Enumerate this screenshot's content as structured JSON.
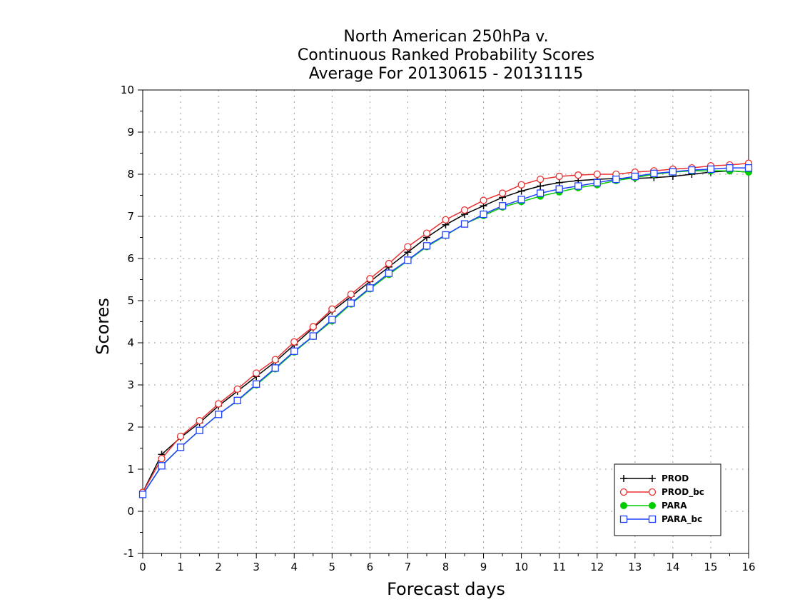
{
  "chart_data": {
    "type": "line",
    "title": [
      "North American 250hPa v.",
      "Continuous Ranked Probability Scores",
      "Average For 20130615 - 20131115"
    ],
    "xlabel": "Forecast days",
    "ylabel": "Scores",
    "xlim": [
      0,
      16
    ],
    "ylim": [
      -1,
      10
    ],
    "xticks": [
      "0",
      "1",
      "2",
      "3",
      "4",
      "5",
      "6",
      "7",
      "8",
      "9",
      "10",
      "11",
      "12",
      "13",
      "14",
      "15",
      "16"
    ],
    "yticks": [
      "-1",
      "0",
      "1",
      "2",
      "3",
      "4",
      "5",
      "6",
      "7",
      "8",
      "9",
      "10"
    ],
    "grid": true,
    "legend_position": "bottom-right",
    "x": [
      0,
      0.5,
      1,
      1.5,
      2,
      2.5,
      3,
      3.5,
      4,
      4.5,
      5,
      5.5,
      6,
      6.5,
      7,
      7.5,
      8,
      8.5,
      9,
      9.5,
      10,
      10.5,
      11,
      11.5,
      12,
      12.5,
      13,
      13.5,
      14,
      14.5,
      15,
      15.5,
      16
    ],
    "series": [
      {
        "name": "PROD",
        "color": "#000000",
        "marker": "plus",
        "values": [
          0.45,
          1.35,
          1.75,
          2.1,
          2.5,
          2.85,
          3.2,
          3.55,
          3.95,
          4.35,
          4.75,
          5.1,
          5.45,
          5.8,
          6.15,
          6.5,
          6.8,
          7.05,
          7.25,
          7.45,
          7.6,
          7.72,
          7.8,
          7.85,
          7.88,
          7.9,
          7.9,
          7.92,
          7.95,
          8.0,
          8.05,
          8.08,
          8.05
        ]
      },
      {
        "name": "PROD_bc",
        "color": "#e83030",
        "marker": "circle",
        "values": [
          0.45,
          1.25,
          1.78,
          2.15,
          2.55,
          2.9,
          3.28,
          3.6,
          4.02,
          4.38,
          4.8,
          5.15,
          5.52,
          5.88,
          6.28,
          6.6,
          6.92,
          7.15,
          7.38,
          7.55,
          7.75,
          7.88,
          7.95,
          7.98,
          8.0,
          8.0,
          8.05,
          8.08,
          8.12,
          8.15,
          8.2,
          8.22,
          8.26
        ]
      },
      {
        "name": "PARA",
        "color": "#00cc00",
        "marker": "dot",
        "values": [
          0.4,
          1.08,
          1.52,
          1.92,
          2.3,
          2.62,
          3.0,
          3.38,
          3.78,
          4.15,
          4.52,
          4.92,
          5.28,
          5.62,
          5.95,
          6.28,
          6.55,
          6.82,
          7.02,
          7.22,
          7.35,
          7.48,
          7.58,
          7.68,
          7.75,
          7.85,
          7.92,
          8.0,
          8.05,
          8.08,
          8.08,
          8.08,
          8.05
        ]
      },
      {
        "name": "PARA_bc",
        "color": "#2040ff",
        "marker": "square",
        "values": [
          0.4,
          1.08,
          1.52,
          1.92,
          2.3,
          2.63,
          3.02,
          3.4,
          3.8,
          4.16,
          4.55,
          4.94,
          5.3,
          5.65,
          5.96,
          6.3,
          6.56,
          6.82,
          7.05,
          7.25,
          7.4,
          7.55,
          7.65,
          7.72,
          7.8,
          7.88,
          7.95,
          8.02,
          8.06,
          8.1,
          8.12,
          8.15,
          8.15
        ]
      }
    ]
  }
}
